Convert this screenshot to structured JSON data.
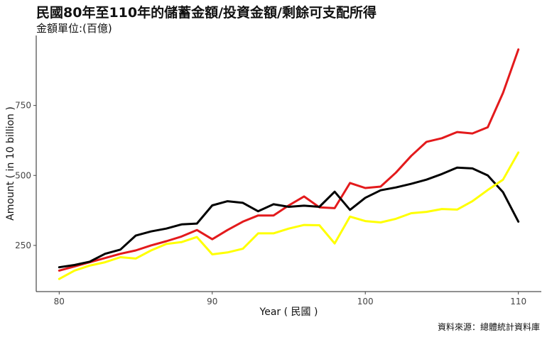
{
  "chart_data": {
    "type": "line",
    "title": "民國80年至110年的儲蓄金額/投資金額/剩餘可支配所得",
    "subtitle": "金額單位:(百億)",
    "caption": "資料來源：總體統計資料庫",
    "xlabel": "Year ( 民國 )",
    "ylabel": "Amount ( in 10 billion )",
    "xlim": [
      78.5,
      111.5
    ],
    "ylim": [
      85,
      1000
    ],
    "x_ticks": [
      80,
      90,
      100,
      110
    ],
    "y_ticks": [
      250,
      500,
      750
    ],
    "grid": false,
    "legend": "none",
    "x": [
      80,
      81,
      82,
      83,
      84,
      85,
      86,
      87,
      88,
      89,
      90,
      91,
      92,
      93,
      94,
      95,
      96,
      97,
      98,
      99,
      100,
      101,
      102,
      103,
      104,
      105,
      106,
      107,
      108,
      109,
      110
    ],
    "series": [
      {
        "color": "#e31a1c",
        "values": [
          160,
          175,
          190,
          205,
          220,
          232,
          250,
          265,
          282,
          305,
          272,
          305,
          335,
          357,
          357,
          393,
          425,
          386,
          383,
          473,
          455,
          460,
          510,
          570,
          620,
          633,
          655,
          650,
          672,
          795,
          950
        ]
      },
      {
        "color": "#000000",
        "values": [
          172,
          180,
          192,
          220,
          235,
          285,
          300,
          310,
          325,
          328,
          393,
          408,
          402,
          372,
          397,
          388,
          392,
          388,
          442,
          377,
          420,
          447,
          457,
          470,
          485,
          505,
          528,
          525,
          500,
          440,
          335
        ]
      },
      {
        "color": "#ffff00",
        "values": [
          130,
          160,
          178,
          190,
          208,
          203,
          232,
          255,
          262,
          280,
          218,
          225,
          238,
          293,
          293,
          310,
          323,
          322,
          257,
          353,
          337,
          332,
          345,
          365,
          370,
          380,
          378,
          408,
          448,
          485,
          582
        ]
      }
    ]
  }
}
